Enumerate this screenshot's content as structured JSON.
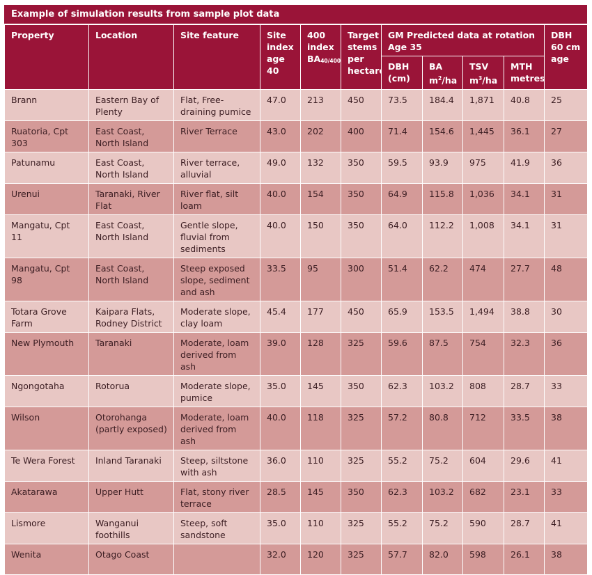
{
  "table": {
    "title": "Example of simulation results from sample plot data",
    "headers": {
      "property": "Property",
      "location": "Location",
      "site_feature": "Site feature",
      "site_index": "Site index age 40",
      "index_400": "400 index BA",
      "index_400_sub": "40/400",
      "target_stems": "Target stems per hectare",
      "gm_group": "GM Predicted data at rotation Age 35",
      "dbh": "DBH (cm)",
      "ba": "BA m",
      "ba_sup": "2",
      "ba_unit": "/ha",
      "tsv": "TSV m",
      "tsv_sup": "3",
      "tsv_unit": "/ha",
      "mth": "MTH metres",
      "dbh60": "DBH 60 cm age"
    },
    "rows": [
      {
        "property": "Brann",
        "location": "Eastern Bay of Plenty",
        "feature": "Flat, Free-draining pumice",
        "si": "47.0",
        "idx": "213",
        "stems": "450",
        "dbh": "73.5",
        "ba": "184.4",
        "tsv": "1,871",
        "mth": "40.8",
        "age": "25"
      },
      {
        "property": "Ruatoria, Cpt 303",
        "location": "East Coast, North Island",
        "feature": "River Terrace",
        "si": "43.0",
        "idx": "202",
        "stems": "400",
        "dbh": "71.4",
        "ba": "154.6",
        "tsv": "1,445",
        "mth": "36.1",
        "age": "27"
      },
      {
        "property": "Patunamu",
        "location": "East Coast, North Island",
        "feature": "River terrace, alluvial",
        "si": "49.0",
        "idx": "132",
        "stems": "350",
        "dbh": "59.5",
        "ba": "93.9",
        "tsv": "975",
        "mth": "41.9",
        "age": "36"
      },
      {
        "property": "Urenui",
        "location": "Taranaki, River Flat",
        "feature": "River flat, silt loam",
        "si": "40.0",
        "idx": "154",
        "stems": "350",
        "dbh": "64.9",
        "ba": "115.8",
        "tsv": "1,036",
        "mth": "34.1",
        "age": "31"
      },
      {
        "property": "Mangatu, Cpt 11",
        "location": "East Coast, North Island",
        "feature": "Gentle slope, fluvial from sediments",
        "si": "40.0",
        "idx": "150",
        "stems": "350",
        "dbh": "64.0",
        "ba": "112.2",
        "tsv": "1,008",
        "mth": "34.1",
        "age": "31"
      },
      {
        "property": "Mangatu, Cpt 98",
        "location": "East Coast, North Island",
        "feature": "Steep exposed slope, sediment and ash",
        "si": "33.5",
        "idx": "95",
        "stems": "300",
        "dbh": "51.4",
        "ba": "62.2",
        "tsv": "474",
        "mth": "27.7",
        "age": "48"
      },
      {
        "property": "Totara Grove Farm",
        "location": "Kaipara Flats, Rodney District",
        "feature": "Moderate slope, clay loam",
        "si": "45.4",
        "idx": "177",
        "stems": "450",
        "dbh": "65.9",
        "ba": "153.5",
        "tsv": "1,494",
        "mth": "38.8",
        "age": "30"
      },
      {
        "property": "New Plymouth",
        "location": "Taranaki",
        "feature": "Moderate, loam derived from ash",
        "si": "39.0",
        "idx": "128",
        "stems": "325",
        "dbh": "59.6",
        "ba": "87.5",
        "tsv": "754",
        "mth": "32.3",
        "age": "36"
      },
      {
        "property": "Ngongotaha",
        "location": "Rotorua",
        "feature": "Moderate slope, pumice",
        "si": "35.0",
        "idx": "145",
        "stems": "350",
        "dbh": "62.3",
        "ba": "103.2",
        "tsv": "808",
        "mth": "28.7",
        "age": "33"
      },
      {
        "property": "Wilson",
        "location": "Otorohanga (partly exposed)",
        "feature": "Moderate, loam derived from ash",
        "si": "40.0",
        "idx": "118",
        "stems": "325",
        "dbh": "57.2",
        "ba": "80.8",
        "tsv": "712",
        "mth": "33.5",
        "age": "38"
      },
      {
        "property": "Te Wera Forest",
        "location": "Inland Taranaki",
        "feature": "Steep, siltstone with ash",
        "si": "36.0",
        "idx": "110",
        "stems": "325",
        "dbh": "55.2",
        "ba": "75.2",
        "tsv": "604",
        "mth": "29.6",
        "age": "41"
      },
      {
        "property": "Akatarawa",
        "location": "Upper Hutt",
        "feature": "Flat, stony river terrace",
        "si": "28.5",
        "idx": "145",
        "stems": "350",
        "dbh": "62.3",
        "ba": "103.2",
        "tsv": "682",
        "mth": "23.1",
        "age": "33"
      },
      {
        "property": "Lismore",
        "location": "Wanganui foothills",
        "feature": "Steep, soft sandstone",
        "si": "35.0",
        "idx": "110",
        "stems": "325",
        "dbh": "55.2",
        "ba": "75.2",
        "tsv": "590",
        "mth": "28.7",
        "age": "41"
      },
      {
        "property": "Wenita",
        "location": "Otago Coast",
        "feature": "",
        "si": "32.0",
        "idx": "120",
        "stems": "325",
        "dbh": "57.7",
        "ba": "82.0",
        "tsv": "598",
        "mth": "26.1",
        "age": "38"
      }
    ]
  }
}
